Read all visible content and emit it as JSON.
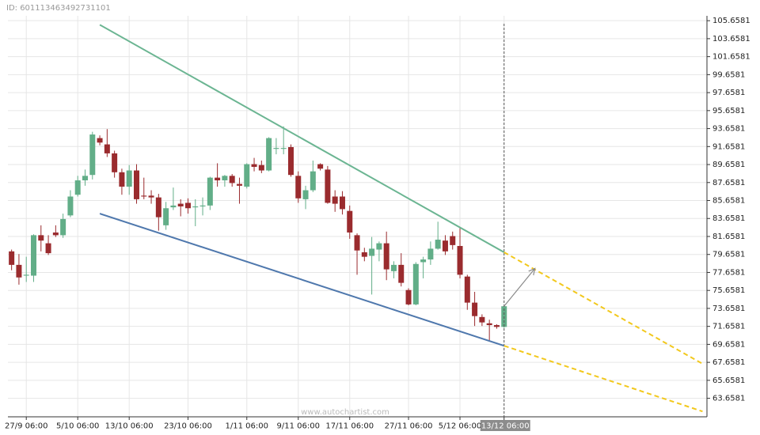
{
  "header": {
    "id": "ID: 601113463492731101"
  },
  "watermark": "www.autochartist.com",
  "chart_data": {
    "type": "candlestick",
    "xlim": [
      -0.5,
      94.6
    ],
    "ylim": [
      61.6,
      106.2
    ],
    "yticks": [
      105.6581,
      103.6581,
      101.6581,
      99.6581,
      97.6581,
      95.6581,
      93.6581,
      91.6581,
      89.6581,
      87.6581,
      85.6581,
      83.6581,
      81.6581,
      79.6581,
      77.6581,
      75.6581,
      73.6581,
      71.6581,
      69.6581,
      67.6581,
      65.6581,
      63.6581
    ],
    "xticks": [
      {
        "value": 2,
        "label": "27/9 06:00"
      },
      {
        "value": 9,
        "label": "5/10 06:00"
      },
      {
        "value": 16,
        "label": "13/10 06:00"
      },
      {
        "value": 24,
        "label": "23/10 06:00"
      },
      {
        "value": 32,
        "label": "1/11 06:00"
      },
      {
        "value": 39,
        "label": "9/11 06:00"
      },
      {
        "value": 46,
        "label": "17/11 06:00"
      },
      {
        "value": 54,
        "label": "27/11 06:00"
      },
      {
        "value": 61,
        "label": "5/12 06:00"
      },
      {
        "value": 67,
        "label": "13/12 06:00"
      }
    ],
    "highlight_tick": 9,
    "grid": true,
    "up_color": "#62ae88",
    "down_color": "#9a2b2e",
    "candles": {
      "open": [
        80.0,
        78.5,
        77.3,
        77.3,
        81.8,
        80.9,
        82.1,
        81.8,
        84.0,
        86.3,
        87.9,
        88.5,
        92.6,
        91.9,
        90.9,
        88.8,
        87.2,
        89.0,
        86.2,
        86.2,
        86.0,
        82.9,
        84.9,
        85.3,
        85.4,
        84.9,
        85.0,
        85.1,
        88.2,
        87.9,
        88.4,
        87.5,
        87.2,
        89.7,
        89.6,
        89.0,
        91.4,
        91.4,
        91.6,
        88.4,
        85.8,
        86.8,
        89.7,
        89.1,
        86.1,
        86.1,
        84.5,
        81.8,
        79.9,
        79.5,
        80.2,
        80.9,
        77.8,
        78.5,
        75.7,
        74.1,
        78.8,
        79.1,
        80.3,
        81.2,
        81.7,
        80.6,
        77.2,
        74.3,
        72.7,
        72.0,
        71.8,
        71.6
      ],
      "high": [
        80.2,
        79.7,
        79.4,
        81.9,
        82.9,
        81.8,
        82.9,
        84.2,
        86.8,
        88.4,
        89.1,
        93.3,
        92.9,
        93.6,
        91.2,
        89.2,
        89.6,
        89.7,
        88.2,
        86.8,
        86.4,
        85.5,
        87.1,
        85.8,
        85.9,
        85.8,
        86.0,
        88.3,
        89.8,
        88.5,
        88.6,
        88.2,
        89.8,
        90.4,
        90.1,
        92.7,
        92.6,
        93.9,
        91.9,
        88.9,
        87.3,
        90.1,
        89.8,
        89.5,
        86.8,
        86.7,
        85.1,
        82.0,
        80.4,
        81.6,
        81.1,
        82.2,
        78.9,
        79.8,
        75.9,
        78.8,
        79.4,
        81.1,
        83.3,
        81.8,
        82.2,
        82.6,
        77.4,
        75.5,
        73.0,
        72.4,
        71.9,
        74.0
      ],
      "low": [
        77.9,
        76.3,
        76.6,
        76.6,
        80.0,
        79.6,
        81.6,
        81.5,
        83.8,
        86.1,
        87.3,
        88.0,
        91.8,
        90.5,
        88.2,
        86.3,
        86.3,
        85.3,
        85.8,
        85.3,
        82.3,
        82.4,
        84.6,
        83.9,
        84.2,
        82.8,
        84.0,
        84.6,
        87.2,
        87.2,
        87.2,
        85.3,
        87.0,
        88.9,
        88.7,
        88.9,
        90.8,
        90.8,
        88.3,
        85.4,
        84.7,
        86.6,
        89.0,
        85.3,
        84.4,
        84.1,
        81.4,
        77.4,
        78.9,
        75.2,
        78.9,
        76.8,
        77.0,
        76.1,
        74.0,
        74.0,
        77.0,
        78.5,
        80.2,
        79.6,
        80.2,
        77.0,
        73.5,
        71.7,
        71.7,
        70.0,
        71.4,
        71.5
      ],
      "close": [
        78.5,
        77.1,
        77.4,
        81.8,
        81.2,
        79.8,
        81.8,
        83.6,
        86.1,
        87.9,
        88.4,
        93.0,
        92.1,
        90.9,
        88.8,
        87.2,
        89.0,
        85.8,
        86.1,
        86.0,
        83.8,
        84.8,
        85.1,
        85.0,
        84.8,
        85.0,
        85.1,
        88.2,
        87.9,
        88.4,
        87.6,
        87.3,
        89.7,
        89.4,
        89.0,
        92.6,
        91.5,
        91.5,
        88.5,
        85.9,
        86.8,
        88.9,
        89.2,
        85.4,
        85.3,
        84.7,
        82.1,
        80.1,
        79.4,
        80.3,
        80.9,
        78.0,
        78.5,
        76.5,
        74.1,
        78.6,
        79.1,
        80.3,
        81.3,
        80.0,
        80.7,
        77.4,
        74.3,
        72.8,
        72.1,
        71.8,
        71.6,
        73.9
      ]
    },
    "lines": [
      {
        "color": "#6bb592",
        "x": [
          12,
          67
        ],
        "values": [
          105.2,
          79.9
        ]
      },
      {
        "color": "#f2c81c",
        "dashed": true,
        "x": [
          67,
          94
        ],
        "values": [
          79.9,
          67.5
        ]
      },
      {
        "color": "#4f78ad",
        "x": [
          12,
          67
        ],
        "values": [
          84.2,
          69.5
        ]
      },
      {
        "color": "#f2c81c",
        "dashed": true,
        "x": [
          67,
          94
        ],
        "values": [
          69.5,
          62.2
        ]
      }
    ],
    "arrow": {
      "color": "#8a8a8a",
      "x": [
        67,
        71.2
      ],
      "values": [
        73.9,
        78.1
      ]
    }
  }
}
